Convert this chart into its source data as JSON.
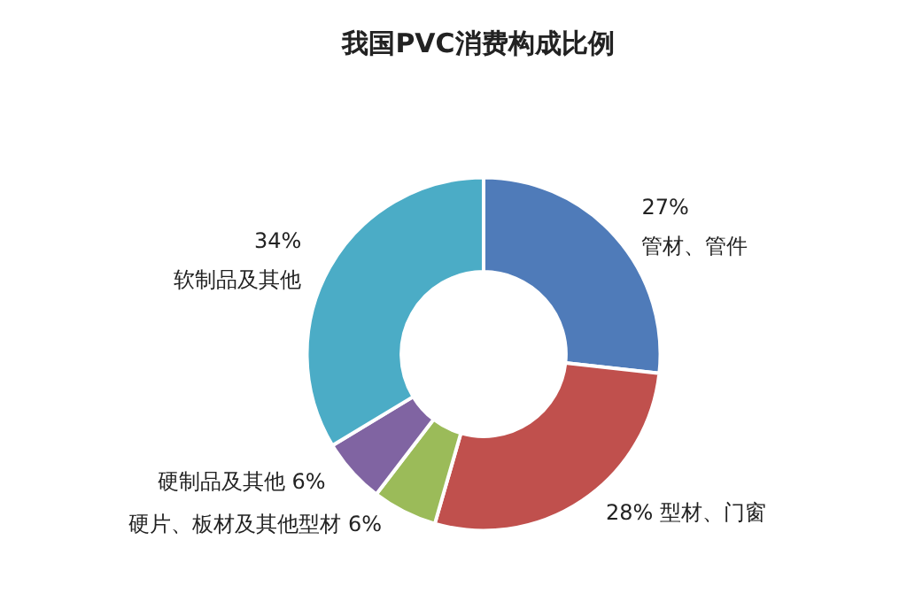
{
  "chart_data": {
    "type": "donut",
    "title": "我国PVC消费构成比例",
    "categories": [
      "管材、管件",
      "型材、门窗",
      "硬片、板材及其他型材",
      "硬制品及其他",
      "软制品及其他"
    ],
    "values": [
      27,
      28,
      6,
      6,
      34
    ],
    "value_labels": [
      "27%",
      "28%",
      "6%",
      "6%",
      "34%"
    ],
    "colors": [
      "#4f7bb9",
      "#c0504d",
      "#9bbb59",
      "#8064a2",
      "#4bacc6"
    ],
    "legend": false
  }
}
